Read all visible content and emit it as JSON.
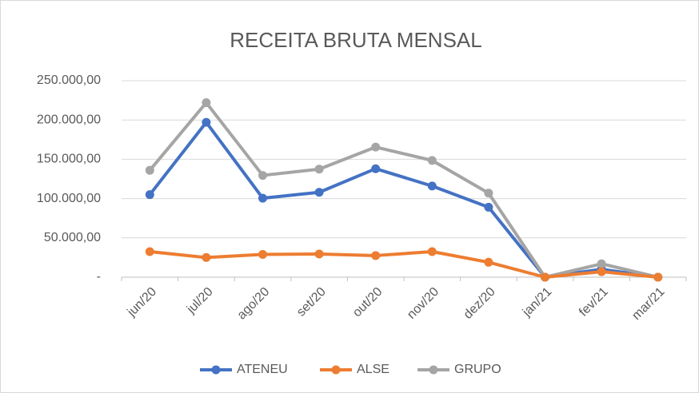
{
  "chart_data": {
    "type": "line",
    "title": "RECEITA BRUTA MENSAL",
    "categories": [
      "jun/20",
      "jul/20",
      "ago/20",
      "set/20",
      "out/20",
      "nov/20",
      "dez/20",
      "jan/21",
      "fev/21",
      "mar/21"
    ],
    "series": [
      {
        "name": "ATENEU",
        "color": "#4472c4",
        "values": [
          105000,
          197000,
          100500,
          108000,
          138000,
          116000,
          89000,
          0,
          10000,
          0
        ]
      },
      {
        "name": "ALSE",
        "color": "#ed7d31",
        "values": [
          32500,
          25000,
          29000,
          29500,
          27500,
          32500,
          19000,
          0,
          7000,
          0
        ]
      },
      {
        "name": "GRUPO",
        "color": "#a5a5a5",
        "values": [
          136000,
          222000,
          129500,
          137500,
          165500,
          148500,
          107000,
          0,
          17000,
          0
        ]
      }
    ],
    "ylim": [
      0,
      250000
    ],
    "yticks": [
      {
        "value": 0,
        "label": "-"
      },
      {
        "value": 50000,
        "label": "50.000,00"
      },
      {
        "value": 100000,
        "label": "100.000,00"
      },
      {
        "value": 150000,
        "label": "150.000,00"
      },
      {
        "value": 200000,
        "label": "200.000,00"
      },
      {
        "value": 250000,
        "label": "250.000,00"
      }
    ],
    "grid": true,
    "legend": "bottom"
  }
}
